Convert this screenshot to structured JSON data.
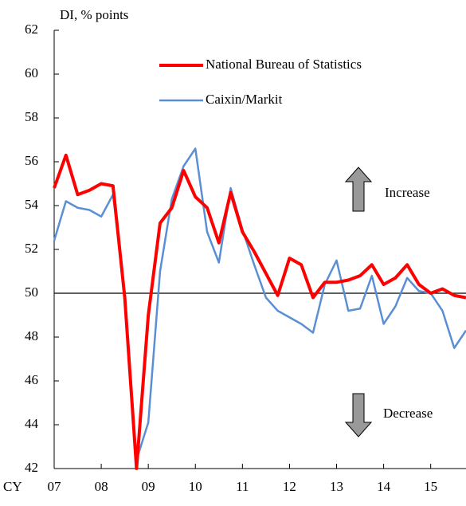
{
  "chart_data": {
    "type": "line",
    "title": "DI, % points",
    "x_label": "CY",
    "x": [
      2007,
      2007.25,
      2007.5,
      2007.75,
      2008,
      2008.25,
      2008.5,
      2008.75,
      2009,
      2009.25,
      2009.5,
      2009.75,
      2010,
      2010.25,
      2010.5,
      2010.75,
      2011,
      2011.25,
      2011.5,
      2011.75,
      2012,
      2012.25,
      2012.5,
      2012.75,
      2013,
      2013.25,
      2013.5,
      2013.75,
      2014,
      2014.25,
      2014.5,
      2014.75,
      2015,
      2015.25,
      2015.5,
      2015.75
    ],
    "series": [
      {
        "name": "National Bureau of Statistics",
        "color": "#ff0000",
        "width": 4,
        "values": [
          54.8,
          56.3,
          54.5,
          54.7,
          55.0,
          54.9,
          49.8,
          42.0,
          49.0,
          53.2,
          53.9,
          55.6,
          54.4,
          53.9,
          52.3,
          54.6,
          52.8,
          51.9,
          50.9,
          49.9,
          51.6,
          51.3,
          49.8,
          50.5,
          50.5,
          50.6,
          50.8,
          51.3,
          50.4,
          50.7,
          51.3,
          50.4,
          50.0,
          50.2,
          49.9,
          49.8
        ]
      },
      {
        "name": "Caixin/Markit",
        "color": "#5b8fd4",
        "width": 2.5,
        "values": [
          52.4,
          54.2,
          53.9,
          53.8,
          53.5,
          54.5,
          50.0,
          42.4,
          44.1,
          51.0,
          54.3,
          55.8,
          56.6,
          52.8,
          51.4,
          54.8,
          52.9,
          51.3,
          49.8,
          49.2,
          48.9,
          48.6,
          48.2,
          50.4,
          51.5,
          49.2,
          49.3,
          50.8,
          48.6,
          49.4,
          50.7,
          50.1,
          50.0,
          49.2,
          47.5,
          48.3
        ]
      }
    ],
    "xlim": [
      2007,
      2015.75
    ],
    "xticks": [
      {
        "value": 2007,
        "label": "07"
      },
      {
        "value": 2008,
        "label": "08"
      },
      {
        "value": 2009,
        "label": "09"
      },
      {
        "value": 2010,
        "label": "10"
      },
      {
        "value": 2011,
        "label": "11"
      },
      {
        "value": 2012,
        "label": "12"
      },
      {
        "value": 2013,
        "label": "13"
      },
      {
        "value": 2014,
        "label": "14"
      },
      {
        "value": 2015,
        "label": "15"
      }
    ],
    "ylim": [
      42,
      62
    ],
    "yticks": [
      42,
      44,
      46,
      48,
      50,
      52,
      54,
      56,
      58,
      60,
      62
    ],
    "hline": 50,
    "annotations": [
      "Increase",
      "Decrease"
    ]
  }
}
